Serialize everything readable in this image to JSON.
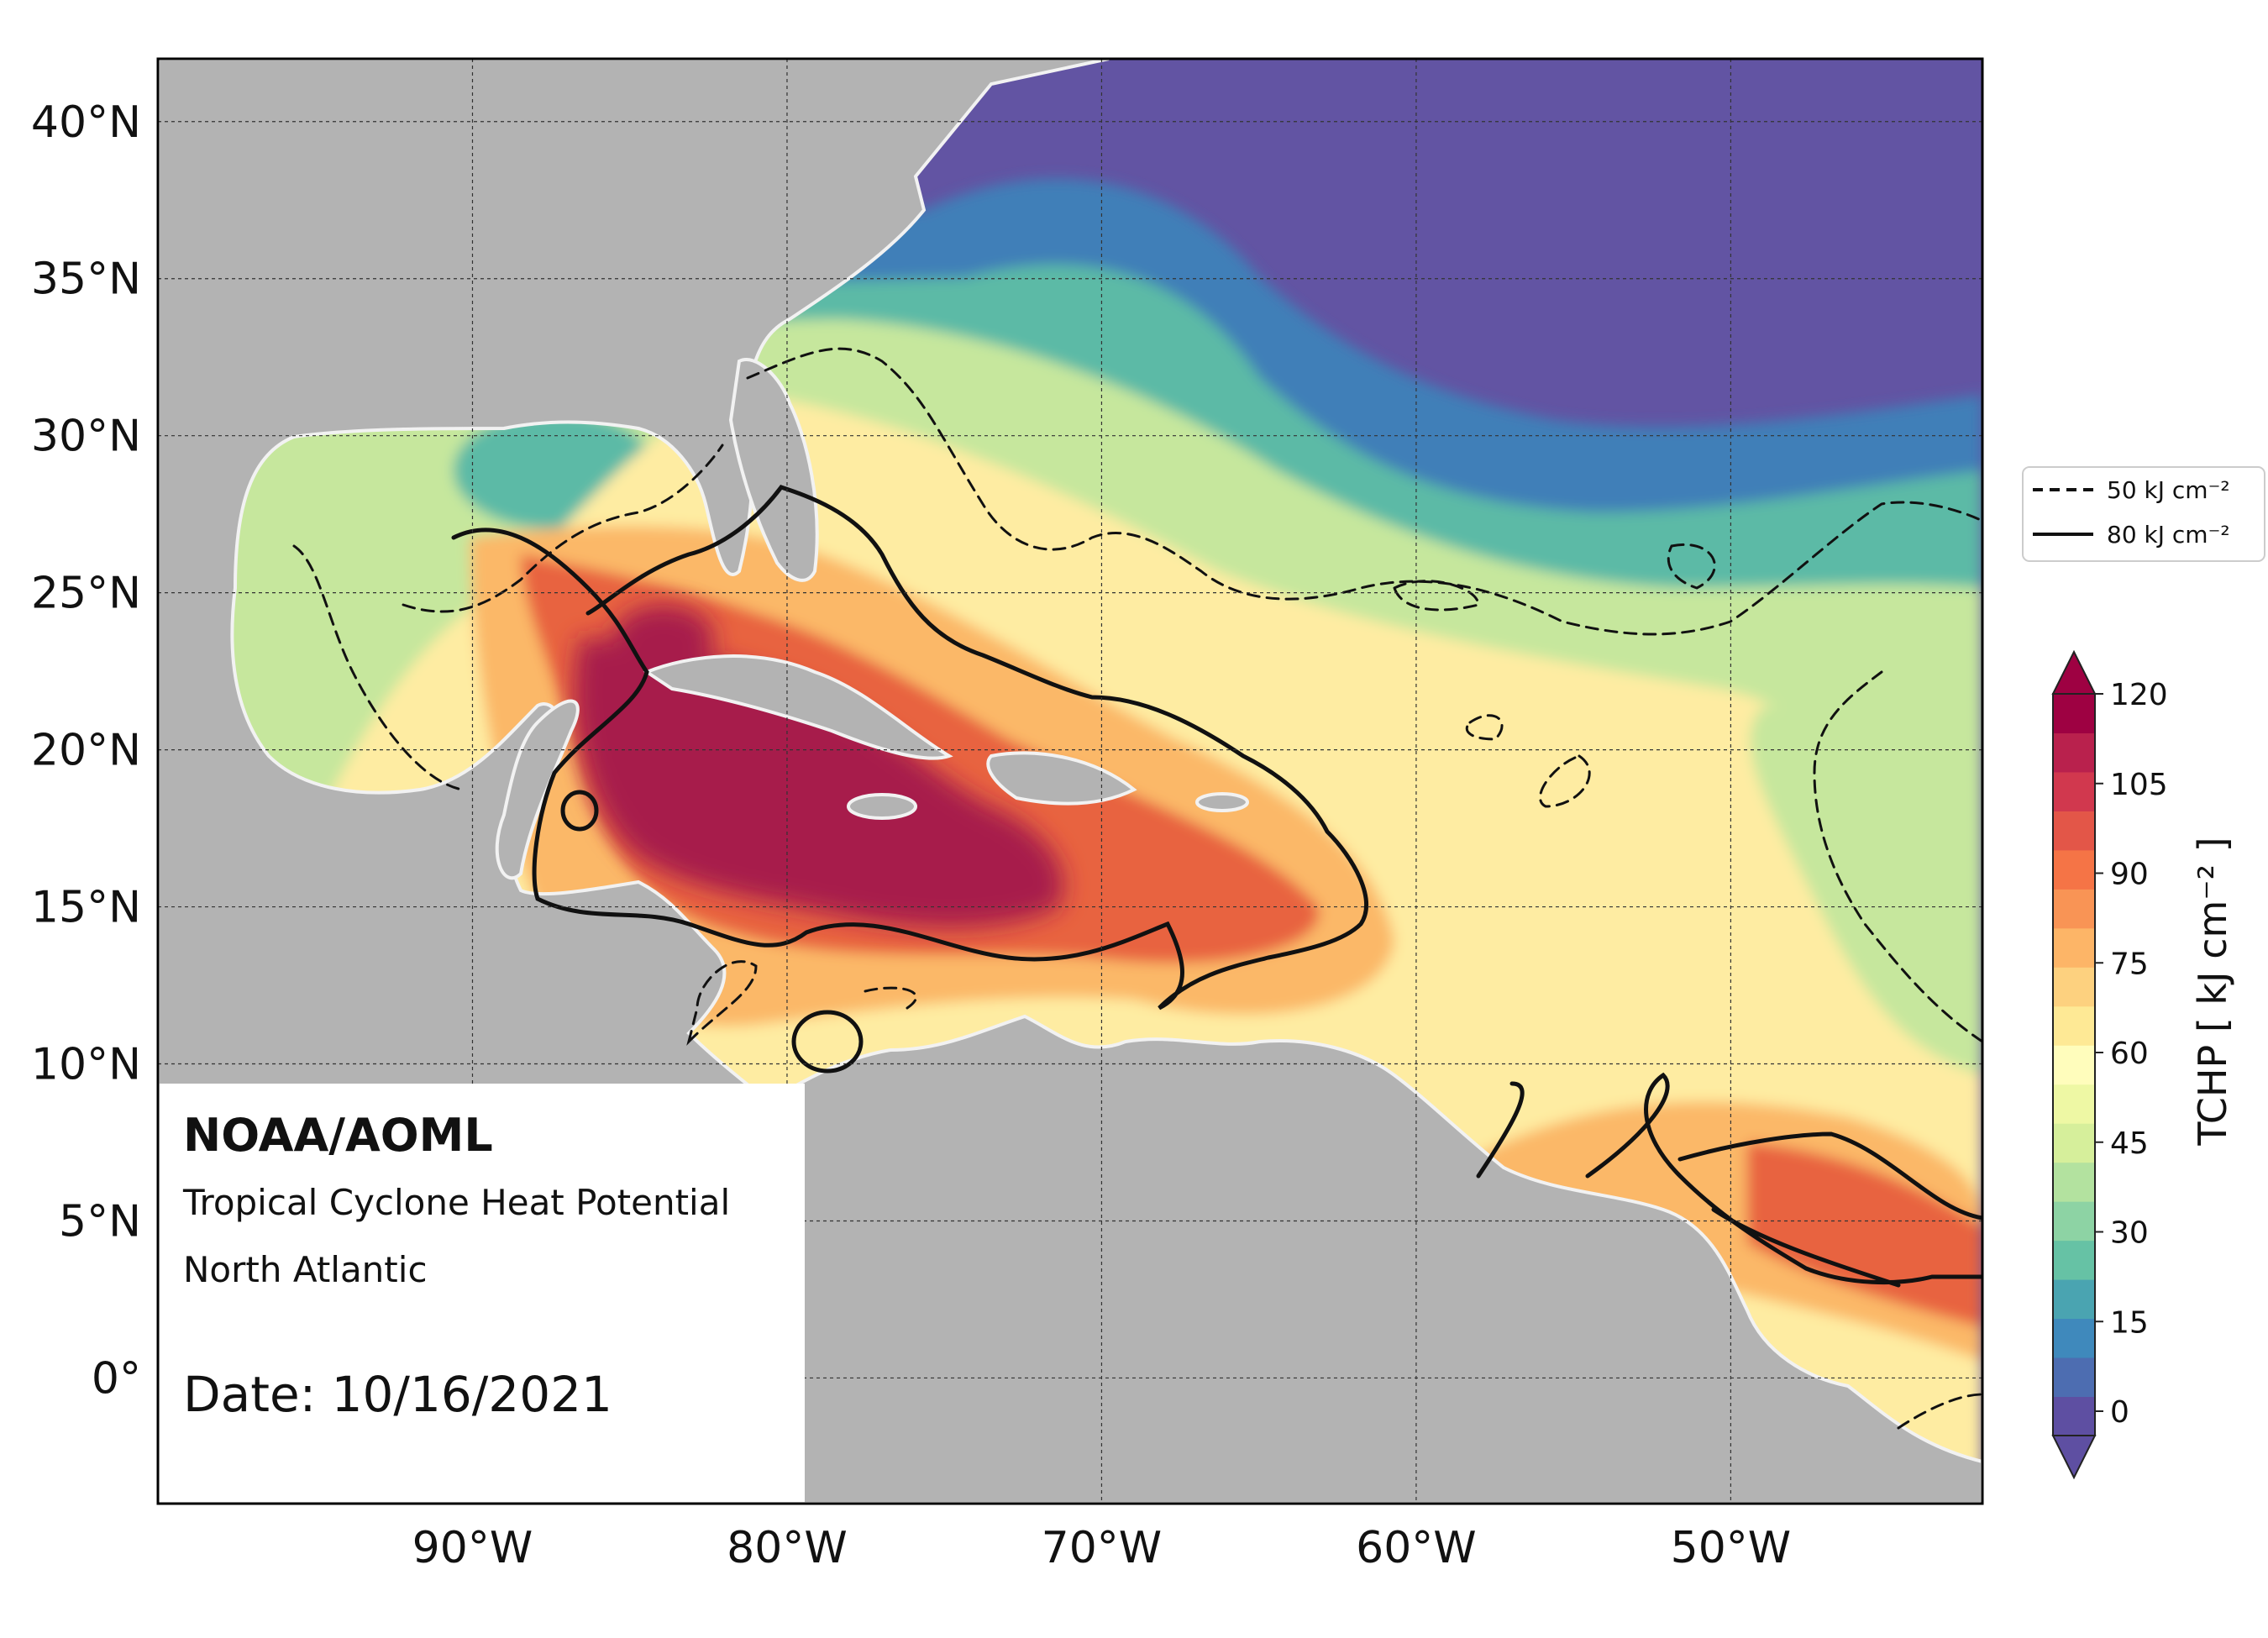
{
  "map": {
    "lon_range": [
      -100,
      -42
    ],
    "lat_range": [
      -4,
      42
    ],
    "lat_ticks": [
      {
        "value": 40,
        "label": "40°N"
      },
      {
        "value": 35,
        "label": "35°N"
      },
      {
        "value": 30,
        "label": "30°N"
      },
      {
        "value": 25,
        "label": "25°N"
      },
      {
        "value": 20,
        "label": "20°N"
      },
      {
        "value": 15,
        "label": "15°N"
      },
      {
        "value": 10,
        "label": "10°N"
      },
      {
        "value": 5,
        "label": "5°N"
      },
      {
        "value": 0,
        "label": "0°"
      }
    ],
    "lon_ticks": [
      {
        "value": -90,
        "label": "90°W"
      },
      {
        "value": -80,
        "label": "80°W"
      },
      {
        "value": -70,
        "label": "70°W"
      },
      {
        "value": -60,
        "label": "60°W"
      },
      {
        "value": -50,
        "label": "50°W"
      }
    ],
    "grid": true,
    "colors": {
      "land": "#b3b3b3",
      "coast": "#f2f2f2",
      "very_high": "#a71b4b",
      "high": "#e8643f",
      "warm": "#fbb868",
      "mid": "#feeca2",
      "low": "#c6e79d",
      "cool": "#5bbaa6",
      "cold": "#3f7fb8",
      "coldest": "#6254a3"
    }
  },
  "info": {
    "org": "NOAA/AOML",
    "product": "Tropical Cyclone Heat Potential",
    "region": "North Atlantic",
    "date": "Date: 10/16/2021"
  },
  "legend": {
    "items": [
      {
        "style": "dashed",
        "text": "50 kJ cm⁻²"
      },
      {
        "style": "solid",
        "text": "80 kJ cm⁻²"
      }
    ]
  },
  "colorbar": {
    "label": "TCHP [ kJ cm⁻² ]",
    "ticks": [
      "0",
      "15",
      "30",
      "45",
      "60",
      "75",
      "90",
      "105",
      "120"
    ],
    "extend": "both",
    "colors": [
      "#5e4fa2",
      "#4d6db1",
      "#3f89bc",
      "#4aa4b1",
      "#66c2a5",
      "#8dd3a4",
      "#b3e29f",
      "#d6ef9b",
      "#eef8a4",
      "#fffdbc",
      "#fee995",
      "#fdd17f",
      "#fdb567",
      "#f99455",
      "#f57446",
      "#e35648",
      "#d1384e",
      "#b9214d",
      "#9e0142"
    ]
  }
}
